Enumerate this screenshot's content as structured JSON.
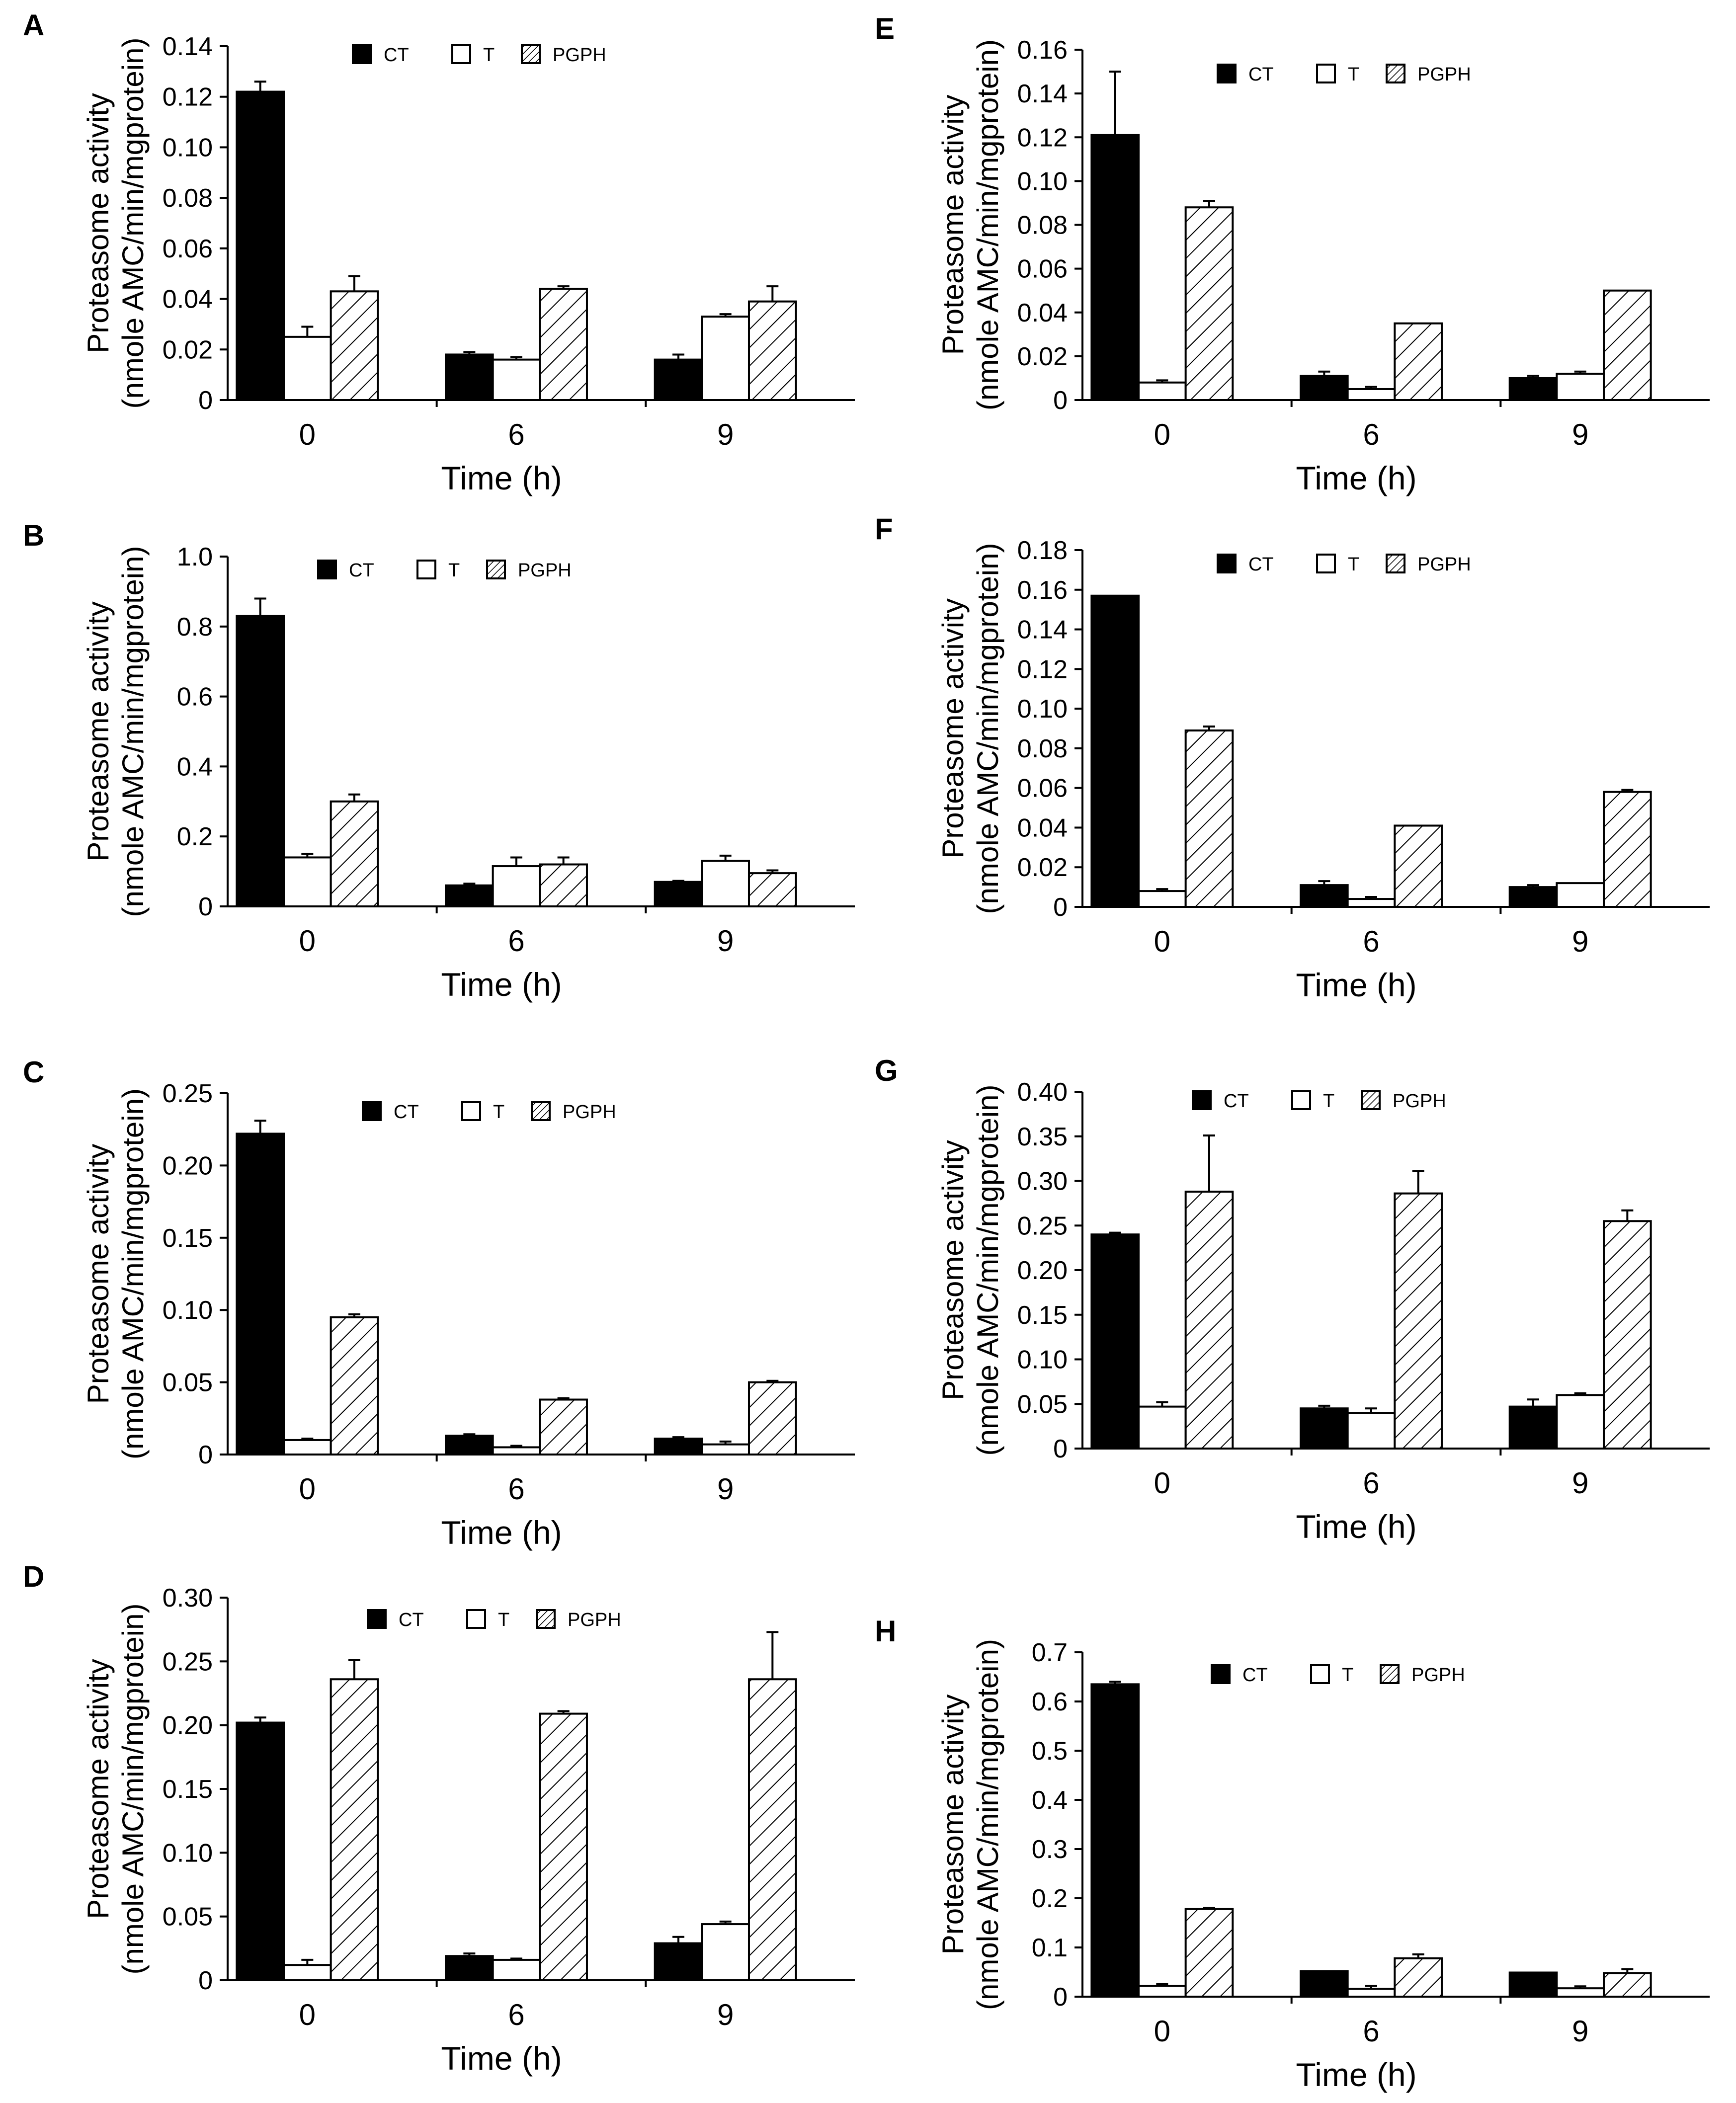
{
  "figure": {
    "legend_labels": [
      "CT",
      "T",
      "PGPH"
    ]
  },
  "chart_data": [
    {
      "panel": "A",
      "type": "bar",
      "categories": [
        "0",
        "6",
        "9"
      ],
      "xlabel": "Time (h)",
      "ylabel": "Proteasome activity",
      "ylabel2": "(nmole AMC/min/mgprotein)",
      "ylim": [
        0,
        0.14
      ],
      "yticks": [
        "0",
        "0.02",
        "0.04",
        "0.06",
        "0.08",
        "0.10",
        "0.12",
        "0.14"
      ],
      "legend": "top-center",
      "series": [
        {
          "name": "CT",
          "fill": "solid",
          "values": [
            0.122,
            0.018,
            0.016
          ],
          "errors": [
            0.004,
            0.001,
            0.002
          ]
        },
        {
          "name": "T",
          "fill": "open",
          "values": [
            0.025,
            0.016,
            0.033
          ],
          "errors": [
            0.004,
            0.001,
            0.001
          ]
        },
        {
          "name": "PGPH",
          "fill": "hatched",
          "values": [
            0.043,
            0.044,
            0.039
          ],
          "errors": [
            0.006,
            0.001,
            0.006
          ]
        }
      ]
    },
    {
      "panel": "B",
      "type": "bar",
      "categories": [
        "0",
        "6",
        "9"
      ],
      "xlabel": "Time (h)",
      "ylabel": "Proteasome activity",
      "ylabel2": "(nmole AMC/min/mgprotein)",
      "ylim": [
        0,
        1.0
      ],
      "yticks": [
        "0",
        "0.2",
        "0.4",
        "0.6",
        "0.8",
        "1.0"
      ],
      "legend": "top-center",
      "series": [
        {
          "name": "CT",
          "fill": "solid",
          "values": [
            0.83,
            0.06,
            0.07
          ],
          "errors": [
            0.05,
            0.005,
            0.003
          ]
        },
        {
          "name": "T",
          "fill": "open",
          "values": [
            0.14,
            0.115,
            0.13
          ],
          "errors": [
            0.01,
            0.025,
            0.015
          ]
        },
        {
          "name": "PGPH",
          "fill": "hatched",
          "values": [
            0.3,
            0.12,
            0.095
          ],
          "errors": [
            0.02,
            0.02,
            0.008
          ]
        }
      ]
    },
    {
      "panel": "C",
      "type": "bar",
      "categories": [
        "0",
        "6",
        "9"
      ],
      "xlabel": "Time (h)",
      "ylabel": "Proteasome activity",
      "ylabel2": "(nmole AMC/min/mgprotein)",
      "ylim": [
        0,
        0.25
      ],
      "yticks": [
        "0",
        "0.05",
        "0.10",
        "0.15",
        "0.20",
        "0.25"
      ],
      "legend": "top-center",
      "series": [
        {
          "name": "CT",
          "fill": "solid",
          "values": [
            0.222,
            0.013,
            0.011
          ],
          "errors": [
            0.009,
            0.001,
            0.001
          ]
        },
        {
          "name": "T",
          "fill": "open",
          "values": [
            0.01,
            0.005,
            0.007
          ],
          "errors": [
            0.001,
            0.001,
            0.002
          ]
        },
        {
          "name": "PGPH",
          "fill": "hatched",
          "values": [
            0.095,
            0.038,
            0.05
          ],
          "errors": [
            0.002,
            0.001,
            0.001
          ]
        }
      ]
    },
    {
      "panel": "D",
      "type": "bar",
      "categories": [
        "0",
        "6",
        "9"
      ],
      "xlabel": "Time (h)",
      "ylabel": "Proteasome activity",
      "ylabel2": "(nmole AMC/min/mgprotein)",
      "ylim": [
        0,
        0.3
      ],
      "yticks": [
        "0",
        "0.05",
        "0.10",
        "0.15",
        "0.20",
        "0.25",
        "0.30"
      ],
      "legend": "top-center",
      "series": [
        {
          "name": "CT",
          "fill": "solid",
          "values": [
            0.202,
            0.019,
            0.029
          ],
          "errors": [
            0.004,
            0.002,
            0.005
          ]
        },
        {
          "name": "T",
          "fill": "open",
          "values": [
            0.012,
            0.016,
            0.044
          ],
          "errors": [
            0.004,
            0.001,
            0.002
          ]
        },
        {
          "name": "PGPH",
          "fill": "hatched",
          "values": [
            0.236,
            0.209,
            0.236
          ],
          "errors": [
            0.015,
            0.002,
            0.037
          ]
        }
      ]
    },
    {
      "panel": "E",
      "type": "bar",
      "categories": [
        "0",
        "6",
        "9"
      ],
      "xlabel": "Time (h)",
      "ylabel": "Proteasome activity",
      "ylabel2": "(nmole AMC/min/mgprotein)",
      "ylim": [
        0,
        0.16
      ],
      "yticks": [
        "0",
        "0.02",
        "0.04",
        "0.06",
        "0.08",
        "0.10",
        "0.12",
        "0.14",
        "0.16"
      ],
      "legend": "top-center",
      "series": [
        {
          "name": "CT",
          "fill": "solid",
          "values": [
            0.121,
            0.011,
            0.01
          ],
          "errors": [
            0.029,
            0.002,
            0.001
          ]
        },
        {
          "name": "T",
          "fill": "open",
          "values": [
            0.008,
            0.005,
            0.012
          ],
          "errors": [
            0.001,
            0.001,
            0.001
          ]
        },
        {
          "name": "PGPH",
          "fill": "hatched",
          "values": [
            0.088,
            0.035,
            0.05
          ],
          "errors": [
            0.003,
            0.0,
            0.0
          ]
        }
      ]
    },
    {
      "panel": "F",
      "type": "bar",
      "categories": [
        "0",
        "6",
        "9"
      ],
      "xlabel": "Time (h)",
      "ylabel": "Proteasome activity",
      "ylabel2": "(nmole AMC/min/mgprotein)",
      "ylim": [
        0,
        0.18
      ],
      "yticks": [
        "0",
        "0.02",
        "0.04",
        "0.06",
        "0.08",
        "0.10",
        "0.12",
        "0.14",
        "0.16",
        "0.18"
      ],
      "legend": "top-center",
      "series": [
        {
          "name": "CT",
          "fill": "solid",
          "values": [
            0.157,
            0.011,
            0.01
          ],
          "errors": [
            0.0,
            0.002,
            0.001
          ]
        },
        {
          "name": "T",
          "fill": "open",
          "values": [
            0.008,
            0.004,
            0.012
          ],
          "errors": [
            0.001,
            0.001,
            0.0
          ]
        },
        {
          "name": "PGPH",
          "fill": "hatched",
          "values": [
            0.089,
            0.041,
            0.058
          ],
          "errors": [
            0.002,
            0.0,
            0.001
          ]
        }
      ]
    },
    {
      "panel": "G",
      "type": "bar",
      "categories": [
        "0",
        "6",
        "9"
      ],
      "xlabel": "Time (h)",
      "ylabel": "Proteasome activity",
      "ylabel2": "(nmole AMC/min/mgprotein)",
      "ylim": [
        0,
        0.4
      ],
      "yticks": [
        "0",
        "0.05",
        "0.10",
        "0.15",
        "0.20",
        "0.25",
        "0.30",
        "0.35",
        "0.40"
      ],
      "legend": "top-center",
      "series": [
        {
          "name": "CT",
          "fill": "solid",
          "values": [
            0.24,
            0.045,
            0.047
          ],
          "errors": [
            0.002,
            0.003,
            0.008
          ]
        },
        {
          "name": "T",
          "fill": "open",
          "values": [
            0.047,
            0.04,
            0.06
          ],
          "errors": [
            0.005,
            0.005,
            0.002
          ]
        },
        {
          "name": "PGPH",
          "fill": "hatched",
          "values": [
            0.288,
            0.286,
            0.255
          ],
          "errors": [
            0.063,
            0.025,
            0.012
          ]
        }
      ]
    },
    {
      "panel": "H",
      "type": "bar",
      "categories": [
        "0",
        "6",
        "9"
      ],
      "xlabel": "Time (h)",
      "ylabel": "Proteasome activity",
      "ylabel2": "(nmole AMC/min/mgprotein)",
      "ylim": [
        0,
        0.7
      ],
      "yticks": [
        "0",
        "0.1",
        "0.2",
        "0.3",
        "0.4",
        "0.5",
        "0.6",
        "0.7"
      ],
      "legend": "top-center",
      "series": [
        {
          "name": "CT",
          "fill": "solid",
          "values": [
            0.635,
            0.052,
            0.049
          ],
          "errors": [
            0.005,
            0.0,
            0.0
          ]
        },
        {
          "name": "T",
          "fill": "open",
          "values": [
            0.022,
            0.016,
            0.017
          ],
          "errors": [
            0.004,
            0.006,
            0.004
          ]
        },
        {
          "name": "PGPH",
          "fill": "hatched",
          "values": [
            0.178,
            0.078,
            0.048
          ],
          "errors": [
            0.002,
            0.008,
            0.008
          ]
        }
      ]
    }
  ]
}
